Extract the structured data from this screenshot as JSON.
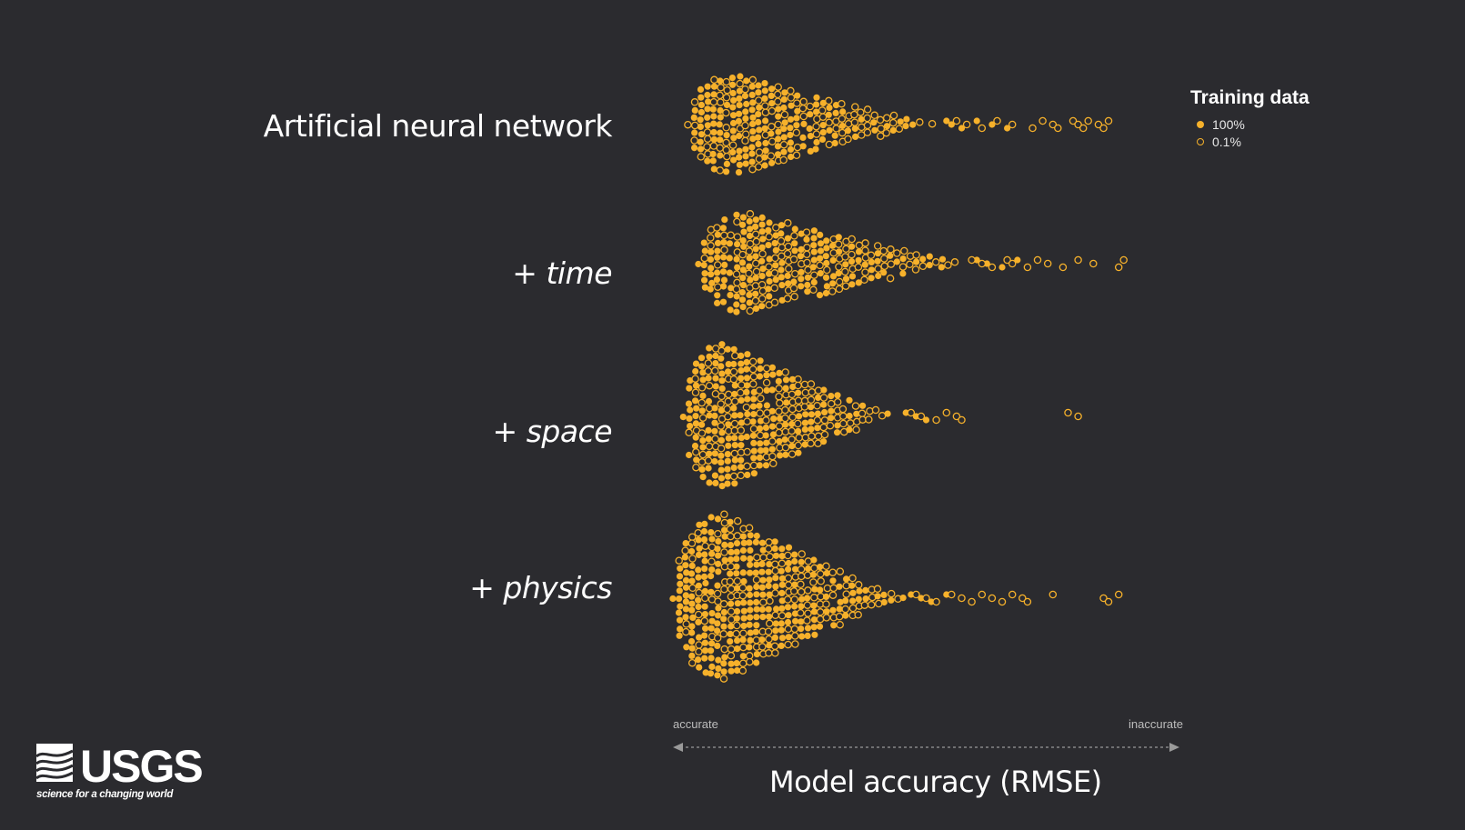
{
  "chart_data": {
    "type": "scatter",
    "subtype": "beeswarm",
    "categories": [
      "Artificial neural network",
      "+ time",
      "+ space",
      "+ physics"
    ],
    "category_parts": [
      {
        "plus": "",
        "text": "Artificial neural network",
        "italic": false
      },
      {
        "plus": "+ ",
        "text": "time",
        "italic": true
      },
      {
        "plus": "+ ",
        "text": "space",
        "italic": true
      },
      {
        "plus": "+ ",
        "text": "physics",
        "italic": true
      }
    ],
    "xlabel": "Model accuracy (RMSE)",
    "x_low_label": "accurate",
    "x_high_label": "inaccurate",
    "legend": {
      "title": "Training data",
      "placement": "top-right",
      "items": [
        {
          "label": "100%",
          "style": "filled"
        },
        {
          "label": "0.1%",
          "style": "hollow"
        }
      ]
    },
    "point_color": "#f6b12b",
    "background": "#2b2b2f",
    "series": [
      {
        "category": "Artificial neural network",
        "count": 520,
        "shape": {
          "main_start": 0.03,
          "main_end": 0.52,
          "max_half_width": 0.85,
          "peak": 0.12
        },
        "tail_100": [
          0.54,
          0.55,
          0.57,
          0.6,
          0.63,
          0.66
        ],
        "tail_01": [
          0.56,
          0.58,
          0.61,
          0.64,
          0.67,
          0.71,
          0.73,
          0.75,
          0.76,
          0.79,
          0.8,
          0.81,
          0.82,
          0.84,
          0.85,
          0.86
        ]
      },
      {
        "category": "+ time",
        "count": 540,
        "shape": {
          "main_start": 0.05,
          "main_end": 0.58,
          "max_half_width": 0.85,
          "peak": 0.15
        },
        "tail_100": [
          0.6,
          0.62,
          0.65,
          0.68
        ],
        "tail_01": [
          0.59,
          0.61,
          0.63,
          0.66,
          0.67,
          0.7,
          0.72,
          0.74,
          0.77,
          0.8,
          0.83,
          0.88,
          0.89
        ]
      },
      {
        "category": "+ space",
        "count": 470,
        "shape": {
          "main_start": 0.02,
          "main_end": 0.44,
          "max_half_width": 1.0,
          "peak": 0.1
        },
        "tail_100": [
          0.46,
          0.48,
          0.5
        ],
        "tail_01": [
          0.47,
          0.49,
          0.52,
          0.54,
          0.56,
          0.57,
          0.78,
          0.8
        ]
      },
      {
        "category": "+ physics",
        "count": 520,
        "shape": {
          "main_start": 0.0,
          "main_end": 0.46,
          "max_half_width": 1.0,
          "peak": 0.1
        },
        "tail_100": [
          0.47,
          0.49,
          0.51,
          0.54
        ],
        "tail_01": [
          0.48,
          0.5,
          0.52,
          0.55,
          0.57,
          0.59,
          0.61,
          0.63,
          0.65,
          0.67,
          0.69,
          0.7,
          0.75,
          0.85,
          0.86,
          0.88
        ]
      }
    ]
  },
  "branding": {
    "logo_word": "USGS",
    "tagline": "science for a changing world"
  }
}
